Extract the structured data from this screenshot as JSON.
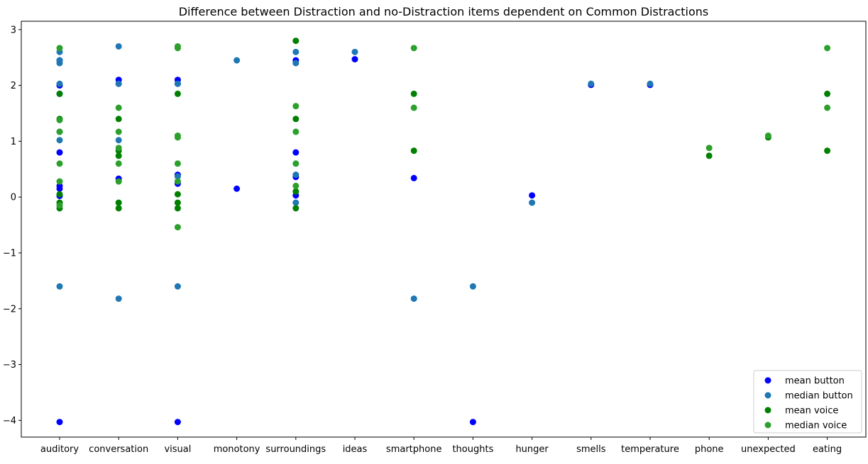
{
  "chart_data": {
    "type": "scatter",
    "title": "Difference between Distraction and no-Distraction items dependent on Common Distractions",
    "xlabel": "",
    "ylabel": "",
    "categories": [
      "auditory",
      "conversation",
      "visual",
      "monotony",
      "surroundings",
      "ideas",
      "smartphone",
      "thoughts",
      "hunger",
      "smells",
      "temperature",
      "phone",
      "unexpected",
      "eating"
    ],
    "y_ticks": [
      -4,
      -3,
      -2,
      -1,
      0,
      1,
      2,
      3
    ],
    "ylim": [
      -4.3,
      3.15
    ],
    "grid": false,
    "legend_position": "lower right",
    "series": [
      {
        "name": "mean button",
        "color": "#0000ff",
        "points": [
          [
            0,
            -4.03
          ],
          [
            0,
            0.02
          ],
          [
            0,
            0.15
          ],
          [
            0,
            0.2
          ],
          [
            0,
            0.8
          ],
          [
            0,
            1.85
          ],
          [
            0,
            2.0
          ],
          [
            0,
            2.45
          ],
          [
            1,
            0.33
          ],
          [
            1,
            2.03
          ],
          [
            1,
            2.1
          ],
          [
            2,
            -4.03
          ],
          [
            2,
            0.24
          ],
          [
            2,
            0.4
          ],
          [
            2,
            2.03
          ],
          [
            2,
            2.1
          ],
          [
            3,
            0.15
          ],
          [
            4,
            0.03
          ],
          [
            4,
            0.36
          ],
          [
            4,
            0.8
          ],
          [
            4,
            2.45
          ],
          [
            5,
            2.47
          ],
          [
            6,
            0.34
          ],
          [
            7,
            -4.03
          ],
          [
            8,
            0.03
          ],
          [
            9,
            2.01
          ],
          [
            10,
            2.01
          ]
        ]
      },
      {
        "name": "median button",
        "color": "#1f77b4",
        "points": [
          [
            0,
            -1.6
          ],
          [
            0,
            1.02
          ],
          [
            0,
            1.17
          ],
          [
            0,
            2.03
          ],
          [
            0,
            2.4
          ],
          [
            0,
            2.45
          ],
          [
            0,
            2.6
          ],
          [
            1,
            -1.82
          ],
          [
            1,
            1.02
          ],
          [
            1,
            2.03
          ],
          [
            1,
            2.7
          ],
          [
            2,
            -1.6
          ],
          [
            2,
            0.37
          ],
          [
            2,
            2.03
          ],
          [
            3,
            2.45
          ],
          [
            4,
            -0.1
          ],
          [
            4,
            0.4
          ],
          [
            4,
            2.4
          ],
          [
            4,
            2.6
          ],
          [
            5,
            2.6
          ],
          [
            6,
            -1.82
          ],
          [
            7,
            -1.6
          ],
          [
            8,
            -0.1
          ],
          [
            9,
            2.03
          ],
          [
            10,
            2.03
          ]
        ]
      },
      {
        "name": "mean voice",
        "color": "#008000",
        "points": [
          [
            0,
            -0.2
          ],
          [
            0,
            -0.1
          ],
          [
            0,
            0.05
          ],
          [
            0,
            1.4
          ],
          [
            0,
            1.85
          ],
          [
            1,
            -0.2
          ],
          [
            1,
            -0.1
          ],
          [
            1,
            0.74
          ],
          [
            1,
            0.83
          ],
          [
            1,
            1.4
          ],
          [
            2,
            -0.2
          ],
          [
            2,
            -0.1
          ],
          [
            2,
            0.05
          ],
          [
            2,
            1.85
          ],
          [
            4,
            -0.2
          ],
          [
            4,
            0.1
          ],
          [
            4,
            1.4
          ],
          [
            4,
            2.8
          ],
          [
            6,
            0.83
          ],
          [
            6,
            1.85
          ],
          [
            11,
            0.74
          ],
          [
            12,
            1.07
          ],
          [
            13,
            0.83
          ],
          [
            13,
            1.85
          ]
        ]
      },
      {
        "name": "median voice",
        "color": "#2ca02c",
        "points": [
          [
            0,
            -0.15
          ],
          [
            0,
            0.28
          ],
          [
            0,
            0.6
          ],
          [
            0,
            1.17
          ],
          [
            0,
            1.38
          ],
          [
            0,
            2.67
          ],
          [
            1,
            0.28
          ],
          [
            1,
            0.6
          ],
          [
            1,
            0.88
          ],
          [
            1,
            1.17
          ],
          [
            1,
            1.6
          ],
          [
            2,
            -0.54
          ],
          [
            2,
            0.28
          ],
          [
            2,
            0.6
          ],
          [
            2,
            1.07
          ],
          [
            2,
            1.1
          ],
          [
            2,
            2.67
          ],
          [
            2,
            2.7
          ],
          [
            4,
            0.2
          ],
          [
            4,
            0.6
          ],
          [
            4,
            1.17
          ],
          [
            4,
            1.63
          ],
          [
            6,
            1.6
          ],
          [
            6,
            2.67
          ],
          [
            11,
            0.88
          ],
          [
            12,
            1.1
          ],
          [
            13,
            1.6
          ],
          [
            13,
            2.67
          ]
        ]
      }
    ]
  }
}
